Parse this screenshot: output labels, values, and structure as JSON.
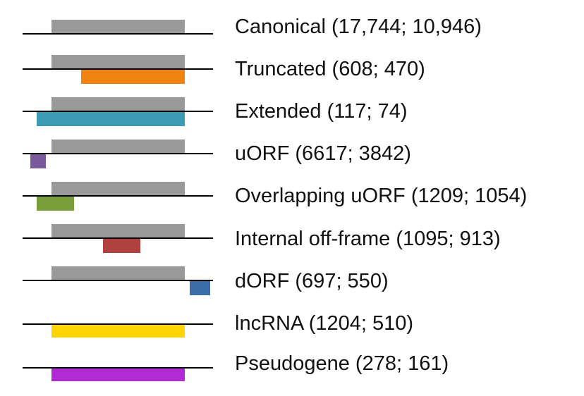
{
  "rows": [
    {
      "label": "Canonical (17,744; 10,946)",
      "color": "#ffffff"
    },
    {
      "label": "Truncated (608; 470)",
      "color": "#f0820f"
    },
    {
      "label": "Extended (117; 74)",
      "color": "#3e9bb6"
    },
    {
      "label": "uORF (6617; 3842)",
      "color": "#7b5a9c"
    },
    {
      "label": "Overlapping uORF (1209; 1054)",
      "color": "#7a9e3a"
    },
    {
      "label": "Internal off-frame (1095; 913)",
      "color": "#b0413e"
    },
    {
      "label": "dORF (697; 550)",
      "color": "#3b6ea8"
    },
    {
      "label": "lncRNA (1204; 510)",
      "color": "#ffd400"
    },
    {
      "label": "Pseudogene (278; 161)",
      "color": "#b02ad6"
    }
  ],
  "canonical_color": "#999999"
}
